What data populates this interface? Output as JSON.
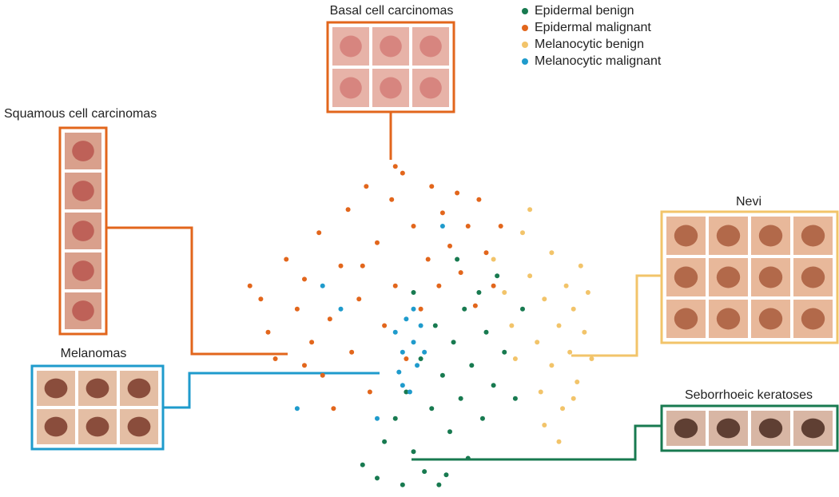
{
  "chart_data": {
    "type": "scatter",
    "annotations": [
      "Basal cell carcinomas",
      "Squamous cell carcinomas",
      "Melanomas",
      "Nevi",
      "Seborrhoeic keratoses"
    ],
    "xlim": [
      0,
      100
    ],
    "ylim": [
      0,
      100
    ],
    "series": [
      {
        "name": "Epidermal benign",
        "color": "#187a50",
        "x": [
          36,
          40,
          42,
          45,
          47,
          48,
          50,
          52,
          53,
          55,
          56,
          57,
          58,
          60,
          61,
          63,
          64,
          65,
          66,
          68,
          69,
          70,
          72,
          73,
          75,
          78,
          80,
          62,
          50,
          59
        ],
        "values": [
          8,
          4,
          15,
          22,
          2,
          30,
          12,
          40,
          6,
          25,
          50,
          2,
          35,
          18,
          45,
          28,
          55,
          10,
          38,
          60,
          22,
          48,
          32,
          65,
          42,
          28,
          55,
          70,
          60,
          5
        ]
      },
      {
        "name": "Epidermal malignant",
        "color": "#e2661c",
        "x": [
          5,
          8,
          10,
          12,
          15,
          18,
          20,
          22,
          24,
          25,
          27,
          30,
          32,
          33,
          35,
          37,
          38,
          40,
          42,
          44,
          45,
          47,
          48,
          50,
          52,
          54,
          55,
          57,
          58,
          60,
          62,
          63,
          65,
          67,
          68,
          70,
          72,
          74,
          28,
          20,
          45,
          36
        ],
        "values": [
          62,
          58,
          48,
          40,
          70,
          55,
          64,
          45,
          78,
          35,
          52,
          68,
          85,
          42,
          58,
          92,
          30,
          75,
          50,
          88,
          62,
          96,
          40,
          80,
          55,
          70,
          92,
          62,
          84,
          74,
          90,
          66,
          80,
          56,
          88,
          72,
          62,
          80,
          25,
          38,
          98,
          68
        ]
      },
      {
        "name": "Melanocytic benign",
        "color": "#f2c46a",
        "x": [
          72,
          75,
          77,
          78,
          80,
          82,
          84,
          85,
          86,
          88,
          88,
          90,
          91,
          92,
          93,
          94,
          95,
          96,
          97,
          98,
          86,
          90,
          82,
          99,
          94
        ],
        "values": [
          70,
          60,
          50,
          40,
          78,
          65,
          45,
          30,
          58,
          72,
          38,
          50,
          25,
          62,
          42,
          55,
          33,
          68,
          48,
          60,
          20,
          15,
          85,
          40,
          28
        ]
      },
      {
        "name": "Melanocytic malignant",
        "color": "#1f9bcc",
        "x": [
          45,
          46,
          47,
          48,
          49,
          50,
          51,
          52,
          50,
          47,
          53,
          30,
          40,
          25,
          58,
          18
        ],
        "values": [
          48,
          36,
          42,
          52,
          30,
          45,
          38,
          50,
          55,
          32,
          42,
          55,
          22,
          62,
          80,
          25
        ]
      }
    ]
  }
}
